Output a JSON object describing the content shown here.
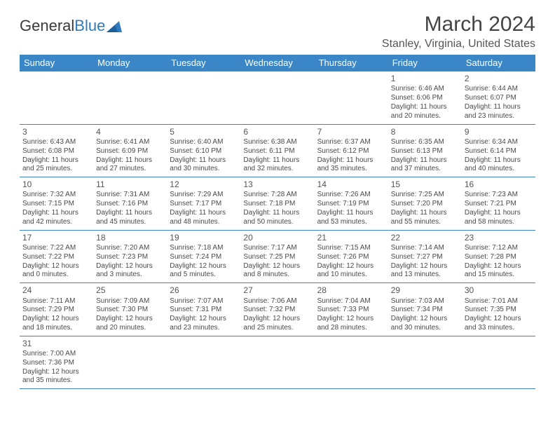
{
  "logo": {
    "part1": "General",
    "part2": "Blue"
  },
  "title": "March 2024",
  "location": "Stanley, Virginia, United States",
  "colors": {
    "header_bg": "#3a86c6",
    "header_text": "#ffffff",
    "cell_border": "#3a86c6",
    "body_text": "#4a4a4a",
    "title_text": "#444444",
    "location_text": "#555555"
  },
  "weekdays": [
    "Sunday",
    "Monday",
    "Tuesday",
    "Wednesday",
    "Thursday",
    "Friday",
    "Saturday"
  ],
  "weeks": [
    [
      null,
      null,
      null,
      null,
      null,
      {
        "n": "1",
        "sunrise": "Sunrise: 6:46 AM",
        "sunset": "Sunset: 6:06 PM",
        "day": "Daylight: 11 hours and 20 minutes."
      },
      {
        "n": "2",
        "sunrise": "Sunrise: 6:44 AM",
        "sunset": "Sunset: 6:07 PM",
        "day": "Daylight: 11 hours and 23 minutes."
      }
    ],
    [
      {
        "n": "3",
        "sunrise": "Sunrise: 6:43 AM",
        "sunset": "Sunset: 6:08 PM",
        "day": "Daylight: 11 hours and 25 minutes."
      },
      {
        "n": "4",
        "sunrise": "Sunrise: 6:41 AM",
        "sunset": "Sunset: 6:09 PM",
        "day": "Daylight: 11 hours and 27 minutes."
      },
      {
        "n": "5",
        "sunrise": "Sunrise: 6:40 AM",
        "sunset": "Sunset: 6:10 PM",
        "day": "Daylight: 11 hours and 30 minutes."
      },
      {
        "n": "6",
        "sunrise": "Sunrise: 6:38 AM",
        "sunset": "Sunset: 6:11 PM",
        "day": "Daylight: 11 hours and 32 minutes."
      },
      {
        "n": "7",
        "sunrise": "Sunrise: 6:37 AM",
        "sunset": "Sunset: 6:12 PM",
        "day": "Daylight: 11 hours and 35 minutes."
      },
      {
        "n": "8",
        "sunrise": "Sunrise: 6:35 AM",
        "sunset": "Sunset: 6:13 PM",
        "day": "Daylight: 11 hours and 37 minutes."
      },
      {
        "n": "9",
        "sunrise": "Sunrise: 6:34 AM",
        "sunset": "Sunset: 6:14 PM",
        "day": "Daylight: 11 hours and 40 minutes."
      }
    ],
    [
      {
        "n": "10",
        "sunrise": "Sunrise: 7:32 AM",
        "sunset": "Sunset: 7:15 PM",
        "day": "Daylight: 11 hours and 42 minutes."
      },
      {
        "n": "11",
        "sunrise": "Sunrise: 7:31 AM",
        "sunset": "Sunset: 7:16 PM",
        "day": "Daylight: 11 hours and 45 minutes."
      },
      {
        "n": "12",
        "sunrise": "Sunrise: 7:29 AM",
        "sunset": "Sunset: 7:17 PM",
        "day": "Daylight: 11 hours and 48 minutes."
      },
      {
        "n": "13",
        "sunrise": "Sunrise: 7:28 AM",
        "sunset": "Sunset: 7:18 PM",
        "day": "Daylight: 11 hours and 50 minutes."
      },
      {
        "n": "14",
        "sunrise": "Sunrise: 7:26 AM",
        "sunset": "Sunset: 7:19 PM",
        "day": "Daylight: 11 hours and 53 minutes."
      },
      {
        "n": "15",
        "sunrise": "Sunrise: 7:25 AM",
        "sunset": "Sunset: 7:20 PM",
        "day": "Daylight: 11 hours and 55 minutes."
      },
      {
        "n": "16",
        "sunrise": "Sunrise: 7:23 AM",
        "sunset": "Sunset: 7:21 PM",
        "day": "Daylight: 11 hours and 58 minutes."
      }
    ],
    [
      {
        "n": "17",
        "sunrise": "Sunrise: 7:22 AM",
        "sunset": "Sunset: 7:22 PM",
        "day": "Daylight: 12 hours and 0 minutes."
      },
      {
        "n": "18",
        "sunrise": "Sunrise: 7:20 AM",
        "sunset": "Sunset: 7:23 PM",
        "day": "Daylight: 12 hours and 3 minutes."
      },
      {
        "n": "19",
        "sunrise": "Sunrise: 7:18 AM",
        "sunset": "Sunset: 7:24 PM",
        "day": "Daylight: 12 hours and 5 minutes."
      },
      {
        "n": "20",
        "sunrise": "Sunrise: 7:17 AM",
        "sunset": "Sunset: 7:25 PM",
        "day": "Daylight: 12 hours and 8 minutes."
      },
      {
        "n": "21",
        "sunrise": "Sunrise: 7:15 AM",
        "sunset": "Sunset: 7:26 PM",
        "day": "Daylight: 12 hours and 10 minutes."
      },
      {
        "n": "22",
        "sunrise": "Sunrise: 7:14 AM",
        "sunset": "Sunset: 7:27 PM",
        "day": "Daylight: 12 hours and 13 minutes."
      },
      {
        "n": "23",
        "sunrise": "Sunrise: 7:12 AM",
        "sunset": "Sunset: 7:28 PM",
        "day": "Daylight: 12 hours and 15 minutes."
      }
    ],
    [
      {
        "n": "24",
        "sunrise": "Sunrise: 7:11 AM",
        "sunset": "Sunset: 7:29 PM",
        "day": "Daylight: 12 hours and 18 minutes."
      },
      {
        "n": "25",
        "sunrise": "Sunrise: 7:09 AM",
        "sunset": "Sunset: 7:30 PM",
        "day": "Daylight: 12 hours and 20 minutes."
      },
      {
        "n": "26",
        "sunrise": "Sunrise: 7:07 AM",
        "sunset": "Sunset: 7:31 PM",
        "day": "Daylight: 12 hours and 23 minutes."
      },
      {
        "n": "27",
        "sunrise": "Sunrise: 7:06 AM",
        "sunset": "Sunset: 7:32 PM",
        "day": "Daylight: 12 hours and 25 minutes."
      },
      {
        "n": "28",
        "sunrise": "Sunrise: 7:04 AM",
        "sunset": "Sunset: 7:33 PM",
        "day": "Daylight: 12 hours and 28 minutes."
      },
      {
        "n": "29",
        "sunrise": "Sunrise: 7:03 AM",
        "sunset": "Sunset: 7:34 PM",
        "day": "Daylight: 12 hours and 30 minutes."
      },
      {
        "n": "30",
        "sunrise": "Sunrise: 7:01 AM",
        "sunset": "Sunset: 7:35 PM",
        "day": "Daylight: 12 hours and 33 minutes."
      }
    ],
    [
      {
        "n": "31",
        "sunrise": "Sunrise: 7:00 AM",
        "sunset": "Sunset: 7:36 PM",
        "day": "Daylight: 12 hours and 35 minutes."
      },
      null,
      null,
      null,
      null,
      null,
      null
    ]
  ]
}
